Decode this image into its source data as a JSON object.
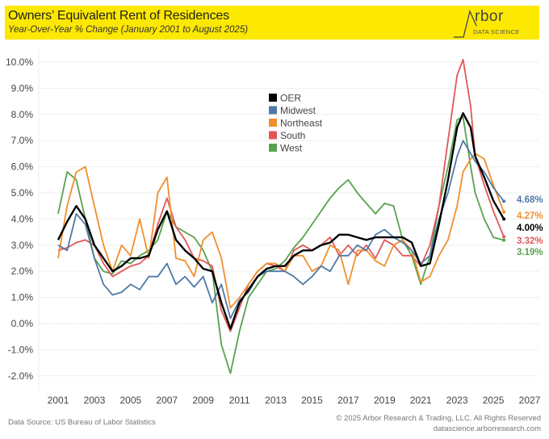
{
  "header": {
    "title": "Owners’ Equivalent Rent of Residences",
    "subtitle": "Year-Over-Year % Change (January 2001 to August 2025)",
    "logo_name": "rbor",
    "logo_sub": "DATA SCIENCE"
  },
  "footer": {
    "source": "Data Source: US Bureau of Labor Statistics",
    "copyright": "© 2025 Arbor Research & Trading, LLC. All Rights Reserved",
    "website": "datascience.arborresearch.com"
  },
  "chart_data": {
    "type": "line",
    "title": "Owners’ Equivalent Rent of Residences",
    "subtitle": "Year-Over-Year % Change (January 2001 to August 2025)",
    "xlabel": "",
    "ylabel": "",
    "xlim": [
      2000.5,
      2027.2
    ],
    "ylim": [
      -2.6,
      10.6
    ],
    "x_ticks": [
      2001,
      2003,
      2005,
      2007,
      2009,
      2011,
      2013,
      2015,
      2017,
      2019,
      2021,
      2023,
      2025,
      2027
    ],
    "x_tick_labels": [
      "2001",
      "2003",
      "2005",
      "2007",
      "2009",
      "2011",
      "2013",
      "2015",
      "2017",
      "2019",
      "2021",
      "2023",
      "2025",
      "2027"
    ],
    "y_ticks": [
      -2,
      -1,
      0,
      1,
      2,
      3,
      4,
      5,
      6,
      7,
      8,
      9,
      10
    ],
    "y_tick_labels": [
      "-2.0%",
      "-1.0%",
      "0.0%",
      "1.0%",
      "2.0%",
      "3.0%",
      "4.0%",
      "5.0%",
      "6.0%",
      "7.0%",
      "8.0%",
      "9.0%",
      "10.0%"
    ],
    "grid": true,
    "legend_position": "top-center",
    "x": [
      2001.0,
      2001.5,
      2002.0,
      2002.5,
      2003.0,
      2003.5,
      2004.0,
      2004.5,
      2005.0,
      2005.5,
      2006.0,
      2006.5,
      2007.0,
      2007.5,
      2008.0,
      2008.5,
      2009.0,
      2009.5,
      2010.0,
      2010.5,
      2011.0,
      2011.5,
      2012.0,
      2012.5,
      2013.0,
      2013.5,
      2014.0,
      2014.5,
      2015.0,
      2015.5,
      2016.0,
      2016.5,
      2017.0,
      2017.5,
      2018.0,
      2018.5,
      2019.0,
      2019.5,
      2020.0,
      2020.5,
      2021.0,
      2021.5,
      2022.0,
      2022.5,
      2023.0,
      2023.33,
      2023.75,
      2024.0,
      2024.5,
      2025.0,
      2025.58
    ],
    "series": [
      {
        "name": "OER",
        "color": "#000000",
        "end_label": "4.00%",
        "values": [
          3.2,
          3.9,
          4.5,
          4.0,
          3.0,
          2.5,
          2.0,
          2.2,
          2.5,
          2.5,
          2.6,
          3.6,
          4.3,
          3.2,
          2.8,
          2.5,
          2.1,
          2.0,
          0.8,
          -0.2,
          0.8,
          1.3,
          1.8,
          2.1,
          2.2,
          2.2,
          2.6,
          2.8,
          2.8,
          3.0,
          3.1,
          3.4,
          3.4,
          3.3,
          3.2,
          3.3,
          3.3,
          3.3,
          3.3,
          3.1,
          2.2,
          2.3,
          3.8,
          5.5,
          7.5,
          8.05,
          7.5,
          6.4,
          5.6,
          4.7,
          4.0
        ]
      },
      {
        "name": "Midwest",
        "color": "#4e79a7",
        "end_label": "4.68%",
        "values": [
          3.0,
          2.8,
          4.2,
          3.8,
          2.5,
          1.5,
          1.1,
          1.2,
          1.5,
          1.3,
          1.8,
          1.8,
          2.3,
          1.5,
          1.8,
          1.4,
          1.8,
          0.8,
          1.5,
          0.2,
          0.9,
          1.2,
          1.8,
          2.0,
          2.0,
          2.0,
          1.8,
          1.5,
          1.8,
          2.2,
          2.0,
          2.6,
          2.6,
          3.0,
          2.8,
          3.4,
          3.6,
          3.3,
          3.1,
          2.8,
          2.3,
          2.6,
          4.0,
          5.0,
          6.4,
          7.0,
          6.5,
          6.2,
          5.8,
          5.2,
          4.68
        ]
      },
      {
        "name": "Northeast",
        "color": "#f28e2b",
        "end_label": "4.27%",
        "values": [
          2.5,
          4.5,
          5.8,
          6.0,
          4.5,
          3.0,
          2.0,
          3.0,
          2.6,
          4.0,
          2.5,
          5.0,
          5.6,
          2.5,
          2.4,
          1.8,
          3.2,
          3.5,
          2.5,
          0.6,
          1.0,
          1.5,
          2.0,
          2.3,
          2.3,
          2.0,
          2.6,
          2.6,
          2.0,
          2.2,
          3.0,
          2.8,
          1.5,
          2.8,
          2.8,
          2.4,
          2.2,
          3.0,
          3.2,
          2.8,
          1.6,
          1.8,
          2.6,
          3.2,
          4.5,
          5.8,
          6.3,
          6.5,
          6.3,
          5.3,
          4.27
        ]
      },
      {
        "name": "South",
        "color": "#e15759",
        "end_label": "3.32%",
        "values": [
          2.8,
          2.9,
          3.1,
          3.2,
          3.0,
          2.3,
          1.8,
          2.0,
          2.2,
          2.3,
          2.6,
          3.8,
          4.8,
          3.7,
          3.2,
          2.5,
          2.4,
          2.2,
          0.5,
          -0.3,
          0.6,
          1.5,
          2.0,
          2.3,
          2.2,
          2.0,
          2.8,
          3.0,
          2.8,
          3.0,
          3.3,
          2.6,
          3.0,
          2.6,
          3.0,
          2.5,
          3.2,
          3.0,
          2.6,
          2.6,
          2.2,
          3.0,
          4.5,
          7.0,
          9.5,
          10.1,
          8.3,
          6.4,
          5.3,
          4.3,
          3.32
        ]
      },
      {
        "name": "West",
        "color": "#59a14f",
        "end_label": "3.19%",
        "values": [
          4.2,
          5.8,
          5.5,
          4.0,
          2.5,
          2.0,
          1.9,
          2.4,
          2.3,
          2.6,
          2.8,
          3.2,
          4.3,
          3.7,
          3.5,
          3.3,
          2.8,
          2.0,
          -0.8,
          -1.9,
          -0.3,
          1.0,
          1.5,
          2.0,
          2.1,
          2.4,
          2.9,
          3.3,
          3.8,
          4.3,
          4.8,
          5.2,
          5.5,
          5.0,
          4.6,
          4.2,
          4.6,
          4.5,
          3.2,
          2.6,
          1.5,
          2.6,
          4.5,
          6.0,
          7.8,
          7.9,
          6.0,
          5.0,
          4.0,
          3.3,
          3.19
        ]
      }
    ]
  }
}
